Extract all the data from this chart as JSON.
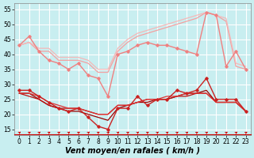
{
  "x": [
    0,
    1,
    2,
    3,
    4,
    5,
    6,
    7,
    8,
    9,
    10,
    11,
    12,
    13,
    14,
    15,
    16,
    17,
    18,
    19,
    20,
    21,
    22,
    23
  ],
  "series": [
    {
      "y": [
        43,
        46,
        41,
        38,
        37,
        35,
        37,
        33,
        32,
        26,
        40,
        41,
        43,
        44,
        43,
        43,
        42,
        41,
        40,
        54,
        53,
        36,
        41,
        35
      ],
      "color": "#f08080",
      "marker": "D",
      "markersize": 1.8,
      "linewidth": 1.0,
      "zorder": 2
    },
    {
      "y": [
        43,
        44,
        41,
        41,
        38,
        38,
        38,
        37,
        34,
        34,
        41,
        44,
        46,
        47,
        48,
        49,
        50,
        51,
        52,
        54,
        53,
        51,
        36,
        35
      ],
      "color": "#f4a0a0",
      "marker": null,
      "markersize": 1.5,
      "linewidth": 0.9,
      "zorder": 1
    },
    {
      "y": [
        43,
        44,
        42,
        42,
        39,
        39,
        39,
        38,
        35,
        35,
        42,
        45,
        47,
        48,
        49,
        50,
        51,
        52,
        53,
        54,
        53,
        52,
        37,
        36
      ],
      "color": "#f4b8b8",
      "marker": null,
      "markersize": 1.5,
      "linewidth": 0.9,
      "zorder": 1
    },
    {
      "y": [
        28,
        28,
        26,
        24,
        22,
        21,
        22,
        19,
        16,
        15,
        22,
        22,
        26,
        23,
        25,
        25,
        28,
        27,
        28,
        32,
        25,
        25,
        25,
        21
      ],
      "color": "#cc2222",
      "marker": "D",
      "markersize": 1.8,
      "linewidth": 1.0,
      "zorder": 3
    },
    {
      "y": [
        27,
        27,
        25,
        23,
        22,
        21,
        21,
        20,
        19,
        18,
        22,
        23,
        24,
        24,
        25,
        25,
        26,
        27,
        27,
        28,
        24,
        24,
        24,
        21
      ],
      "color": "#990000",
      "marker": null,
      "markersize": 1.5,
      "linewidth": 0.9,
      "zorder": 2
    },
    {
      "y": [
        27,
        26,
        25,
        23,
        22,
        22,
        22,
        21,
        20,
        20,
        23,
        23,
        24,
        25,
        25,
        25,
        26,
        26,
        27,
        27,
        24,
        24,
        24,
        21
      ],
      "color": "#bb1111",
      "marker": null,
      "markersize": 1.5,
      "linewidth": 0.9,
      "zorder": 2
    },
    {
      "y": [
        27,
        27,
        26,
        24,
        23,
        22,
        22,
        21,
        20,
        20,
        23,
        23,
        24,
        25,
        25,
        26,
        26,
        27,
        27,
        27,
        24,
        24,
        24,
        21
      ],
      "color": "#dd3333",
      "marker": null,
      "markersize": 1.5,
      "linewidth": 0.9,
      "zorder": 2
    }
  ],
  "xlabel": "Vent moyen/en rafales ( km/h )",
  "xlim": [
    -0.5,
    23.5
  ],
  "ylim": [
    13,
    57
  ],
  "yticks": [
    15,
    20,
    25,
    30,
    35,
    40,
    45,
    50,
    55
  ],
  "xticks": [
    0,
    1,
    2,
    3,
    4,
    5,
    6,
    7,
    8,
    9,
    10,
    11,
    12,
    13,
    14,
    15,
    16,
    17,
    18,
    19,
    20,
    21,
    22,
    23
  ],
  "background_color": "#c8eef0",
  "grid_color": "#ffffff",
  "xlabel_fontsize": 7.0,
  "tick_fontsize": 5.5,
  "arrow_color": "#cc0000"
}
